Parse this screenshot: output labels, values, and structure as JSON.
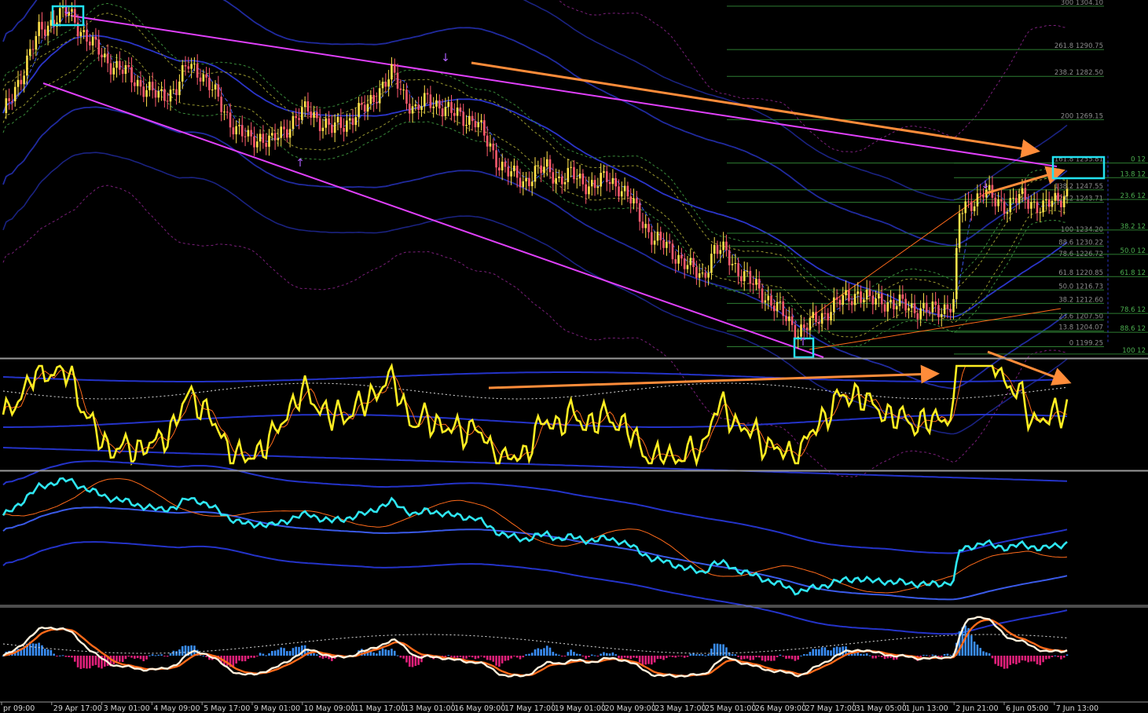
{
  "chart_data": {
    "type": "candlestick",
    "x_ticks": [
      "pr 09:00",
      "29 Apr 17:00",
      "3 May 01:00",
      "4 May 09:00",
      "5 May 17:00",
      "9 May 01:00",
      "10 May 09:00",
      "11 May 17:00",
      "13 May 01:00",
      "16 May 09:00",
      "17 May 17:00",
      "19 May 01:00",
      "20 May 09:00",
      "23 May 17:00",
      "25 May 01:00",
      "26 May 09:00",
      "27 May 17:00",
      "31 May 05:00",
      "1 Jun 13:00",
      "2 Jun 21:00",
      "6 Jun 05:00",
      "7 Jun 13:00"
    ],
    "price_path": [
      [
        0,
        1270
      ],
      [
        6,
        1283
      ],
      [
        12,
        1296
      ],
      [
        18,
        1301
      ],
      [
        22,
        1302
      ],
      [
        26,
        1297
      ],
      [
        30,
        1292
      ],
      [
        34,
        1288
      ],
      [
        40,
        1284
      ],
      [
        46,
        1280
      ],
      [
        52,
        1276
      ],
      [
        58,
        1279
      ],
      [
        62,
        1286
      ],
      [
        66,
        1284
      ],
      [
        70,
        1278
      ],
      [
        74,
        1272
      ],
      [
        78,
        1266
      ],
      [
        82,
        1263
      ],
      [
        86,
        1264
      ],
      [
        90,
        1262
      ],
      [
        94,
        1266
      ],
      [
        98,
        1270
      ],
      [
        102,
        1272
      ],
      [
        106,
        1269
      ],
      [
        110,
        1266
      ],
      [
        114,
        1268
      ],
      [
        118,
        1271
      ],
      [
        122,
        1273
      ],
      [
        126,
        1279
      ],
      [
        130,
        1283
      ],
      [
        134,
        1277
      ],
      [
        138,
        1272
      ],
      [
        142,
        1275
      ],
      [
        146,
        1274
      ],
      [
        150,
        1271
      ],
      [
        154,
        1270
      ],
      [
        158,
        1269
      ],
      [
        162,
        1262
      ],
      [
        166,
        1256
      ],
      [
        170,
        1252
      ],
      [
        174,
        1250
      ],
      [
        178,
        1253
      ],
      [
        182,
        1254
      ],
      [
        186,
        1251
      ],
      [
        190,
        1252
      ],
      [
        194,
        1250
      ],
      [
        198,
        1249
      ],
      [
        202,
        1251
      ],
      [
        206,
        1249
      ],
      [
        210,
        1244
      ],
      [
        214,
        1238
      ],
      [
        218,
        1232
      ],
      [
        222,
        1230
      ],
      [
        226,
        1227
      ],
      [
        230,
        1223
      ],
      [
        234,
        1221
      ],
      [
        238,
        1229
      ],
      [
        242,
        1228
      ],
      [
        246,
        1223
      ],
      [
        250,
        1219
      ],
      [
        254,
        1216
      ],
      [
        258,
        1212
      ],
      [
        262,
        1208
      ],
      [
        266,
        1204
      ],
      [
        270,
        1206
      ],
      [
        274,
        1209
      ],
      [
        278,
        1212
      ],
      [
        282,
        1214
      ],
      [
        286,
        1216
      ],
      [
        290,
        1213
      ],
      [
        294,
        1214
      ],
      [
        298,
        1212
      ],
      [
        302,
        1212
      ],
      [
        306,
        1211
      ],
      [
        310,
        1210
      ],
      [
        314,
        1211
      ],
      [
        318,
        1213
      ],
      [
        320,
        1240
      ],
      [
        324,
        1244
      ],
      [
        328,
        1247
      ],
      [
        332,
        1244
      ],
      [
        336,
        1243
      ],
      [
        340,
        1245
      ],
      [
        344,
        1244
      ],
      [
        348,
        1242
      ],
      [
        352,
        1244
      ],
      [
        356,
        1247
      ]
    ],
    "fib_left": [
      {
        "label": "300 1304.10",
        "price": 1304.1
      },
      {
        "label": "261.8 1290.75",
        "price": 1290.75
      },
      {
        "label": "238.2 1282.50",
        "price": 1282.5
      },
      {
        "label": "200 1269.15",
        "price": 1269.15
      },
      {
        "label": "161.8 1255.81",
        "price": 1255.81
      },
      {
        "label": "138.2 1247.55",
        "price": 1247.55
      },
      {
        "label": "127.2 1243.71",
        "price": 1243.71
      },
      {
        "label": "100 1234.20",
        "price": 1234.2
      },
      {
        "label": "88.6 1230.22",
        "price": 1230.22
      },
      {
        "label": "78.6 1226.72",
        "price": 1226.72
      },
      {
        "label": "61.8 1220.85",
        "price": 1220.85
      },
      {
        "label": "50.0 1216.73",
        "price": 1216.73
      },
      {
        "label": "38.2 1212.60",
        "price": 1212.6
      },
      {
        "label": "23.6 1207.50",
        "price": 1207.5
      },
      {
        "label": "13.8 1204.07",
        "price": 1204.07
      },
      {
        "label": "0 1199.25",
        "price": 1199.25
      }
    ],
    "fib_right": [
      {
        "label": "0 12",
        "price": 1255.81
      },
      {
        "label": "13.8 12",
        "price": 1251.3
      },
      {
        "label": "23.6 12",
        "price": 1244.6
      },
      {
        "label": "38.2 12",
        "price": 1235.2
      },
      {
        "label": "50.0 12",
        "price": 1227.7
      },
      {
        "label": "61.8 12",
        "price": 1220.85
      },
      {
        "label": "78.6 12",
        "price": 1209.5
      },
      {
        "label": "88.6 12",
        "price": 1203.7
      },
      {
        "label": "100 12",
        "price": 1197.0
      }
    ],
    "price_range": [
      1196,
      1306
    ],
    "colors": {
      "bull_candle": "#ffe24a",
      "bear_candle": "#ff5a6e",
      "channel": "#e040fb",
      "arrow": "#ff8c3a",
      "marker_box": "#22e0f0",
      "fib_line": "#2e7d32",
      "fib_text": "#8c8c8c",
      "osc1": "#ffee22",
      "osc2": "#2ee6f2",
      "band": "#2433c8",
      "hist_up": "#3a8ef5",
      "hist_down": "#e0207a",
      "macd_line": "#fff1dc",
      "signal_line": "#ff6a1a"
    }
  }
}
